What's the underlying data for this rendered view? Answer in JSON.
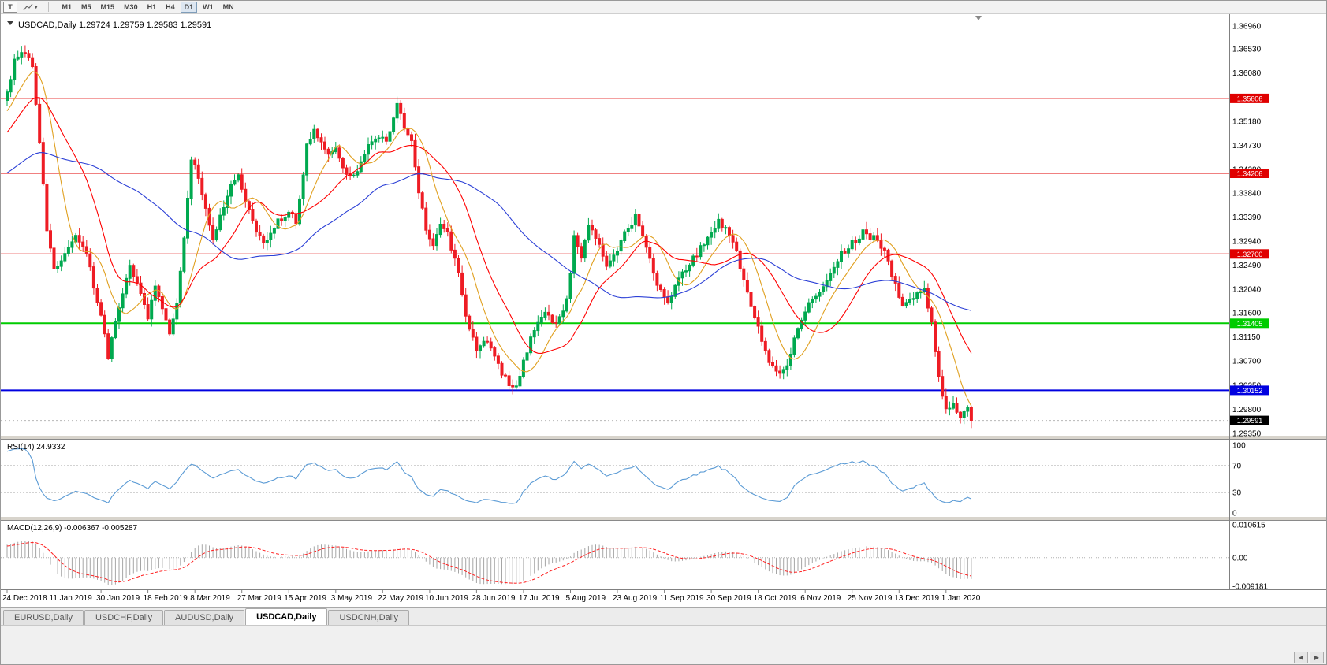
{
  "toolbar": {
    "text_tool": "T",
    "caret": "▾",
    "timeframes": [
      "M1",
      "M5",
      "M15",
      "M30",
      "H1",
      "H4",
      "D1",
      "W1",
      "MN"
    ],
    "active_timeframe": "D1"
  },
  "chart": {
    "title": "USDCAD,Daily",
    "ohlc": {
      "open": "1.29724",
      "high": "1.29759",
      "low": "1.29583",
      "close": "1.29591"
    },
    "current_price": {
      "value": "1.29591",
      "bg": "#000000"
    },
    "price_scale": [
      "1.36960",
      "1.36530",
      "1.36080",
      "1.35630",
      "1.35180",
      "1.34730",
      "1.34280",
      "1.33840",
      "1.33390",
      "1.32940",
      "1.32490",
      "1.32040",
      "1.31600",
      "1.31150",
      "1.30700",
      "1.30250",
      "1.29800",
      "1.29350"
    ],
    "hlines": [
      {
        "price": 1.35606,
        "color": "#e00000",
        "width": 1,
        "label": "1.35606"
      },
      {
        "price": 1.34206,
        "color": "#e00000",
        "width": 1,
        "label": "1.34206"
      },
      {
        "price": 1.327,
        "color": "#e00000",
        "width": 1,
        "label": "1.32700"
      },
      {
        "price": 1.31405,
        "color": "#00cc00",
        "width": 2,
        "label": "1.31405"
      },
      {
        "price": 1.30152,
        "color": "#0000e0",
        "width": 2,
        "label": "1.30152"
      }
    ],
    "date_labels": [
      "24 Dec 2018",
      "11 Jan 2019",
      "30 Jan 2019",
      "18 Feb 2019",
      "8 Mar 2019",
      "27 Mar 2019",
      "15 Apr 2019",
      "3 May 2019",
      "22 May 2019",
      "10 Jun 2019",
      "28 Jun 2019",
      "17 Jul 2019",
      "5 Aug 2019",
      "23 Aug 2019",
      "11 Sep 2019",
      "30 Sep 2019",
      "18 Oct 2019",
      "6 Nov 2019",
      "25 Nov 2019",
      "13 Dec 2019",
      "1 Jan 2020"
    ]
  },
  "rsi": {
    "label": "RSI(14)",
    "value": "24.9332",
    "scale": [
      "100",
      "70",
      "30",
      "0"
    ],
    "levels": [
      70,
      30
    ],
    "color": "#5b9bd5"
  },
  "macd": {
    "label": "MACD(12,26,9)",
    "values": "-0.006367 -0.005287",
    "scale": [
      "0.010615",
      "0.00",
      "-0.009181"
    ],
    "histogram_color": "#a6a6a6",
    "signal_color": "#ff2020"
  },
  "tabs": {
    "items": [
      "EURUSD,Daily",
      "USDCHF,Daily",
      "AUDUSD,Daily",
      "USDCAD,Daily",
      "USDCNH,Daily"
    ],
    "active": "USDCAD,Daily"
  },
  "bottom": {
    "scroll_left": "◀",
    "scroll_right": "▶"
  },
  "chart_data": {
    "type": "candlestick",
    "symbol": "USDCAD",
    "timeframe": "Daily",
    "candle_count": 268,
    "price_range_visible": [
      1.2925,
      1.3718
    ],
    "colors": {
      "up": "#00a94f",
      "down": "#ee1c24"
    },
    "moving_averages": [
      {
        "period": 10,
        "color": "#e0a020"
      },
      {
        "period": 21,
        "color": "#ff0000"
      },
      {
        "period": 55,
        "color": "#2b3fd6"
      }
    ],
    "indicators": [
      {
        "name": "RSI",
        "period": 14,
        "last_value": 24.9332
      },
      {
        "name": "MACD",
        "fast": 12,
        "slow": 26,
        "signal": 9,
        "last_main": -0.006367,
        "last_signal": -0.005287
      }
    ],
    "pre_history": [
      [
        -60,
        1.333
      ],
      [
        -45,
        1.3395
      ],
      [
        -30,
        1.3345
      ],
      [
        -15,
        1.346
      ],
      [
        -6,
        1.353
      ]
    ],
    "waypoints": [
      [
        0,
        1.357
      ],
      [
        2,
        1.363
      ],
      [
        5,
        1.365
      ],
      [
        7,
        1.3615
      ],
      [
        9,
        1.348
      ],
      [
        11,
        1.331
      ],
      [
        13,
        1.324
      ],
      [
        16,
        1.327
      ],
      [
        19,
        1.3305
      ],
      [
        22,
        1.327
      ],
      [
        24,
        1.321
      ],
      [
        26,
        1.315
      ],
      [
        28,
        1.308
      ],
      [
        31,
        1.317
      ],
      [
        34,
        1.3245
      ],
      [
        37,
        1.32
      ],
      [
        39,
        1.3155
      ],
      [
        41,
        1.3215
      ],
      [
        43,
        1.317
      ],
      [
        45,
        1.312
      ],
      [
        47,
        1.318
      ],
      [
        49,
        1.33
      ],
      [
        51,
        1.3445
      ],
      [
        53,
        1.3415
      ],
      [
        55,
        1.335
      ],
      [
        57,
        1.3295
      ],
      [
        59,
        1.334
      ],
      [
        62,
        1.3395
      ],
      [
        64,
        1.342
      ],
      [
        66,
        1.337
      ],
      [
        69,
        1.3305
      ],
      [
        72,
        1.329
      ],
      [
        75,
        1.333
      ],
      [
        78,
        1.335
      ],
      [
        80,
        1.333
      ],
      [
        83,
        1.347
      ],
      [
        85,
        1.35
      ],
      [
        88,
        1.346
      ],
      [
        91,
        1.3465
      ],
      [
        93,
        1.343
      ],
      [
        96,
        1.3415
      ],
      [
        99,
        1.346
      ],
      [
        102,
        1.349
      ],
      [
        105,
        1.348
      ],
      [
        107,
        1.352
      ],
      [
        108,
        1.355
      ],
      [
        110,
        1.351
      ],
      [
        112,
        1.348
      ],
      [
        114,
        1.339
      ],
      [
        116,
        1.331
      ],
      [
        118,
        1.329
      ],
      [
        120,
        1.332
      ],
      [
        122,
        1.331
      ],
      [
        125,
        1.323
      ],
      [
        127,
        1.315
      ],
      [
        130,
        1.309
      ],
      [
        133,
        1.311
      ],
      [
        136,
        1.306
      ],
      [
        139,
        1.303
      ],
      [
        141,
        1.302
      ],
      [
        143,
        1.307
      ],
      [
        146,
        1.313
      ],
      [
        149,
        1.316
      ],
      [
        152,
        1.314
      ],
      [
        155,
        1.318
      ],
      [
        157,
        1.33
      ],
      [
        159,
        1.326
      ],
      [
        161,
        1.332
      ],
      [
        164,
        1.329
      ],
      [
        166,
        1.325
      ],
      [
        169,
        1.328
      ],
      [
        172,
        1.332
      ],
      [
        174,
        1.334
      ],
      [
        177,
        1.328
      ],
      [
        180,
        1.321
      ],
      [
        183,
        1.318
      ],
      [
        186,
        1.323
      ],
      [
        189,
        1.325
      ],
      [
        192,
        1.328
      ],
      [
        195,
        1.3305
      ],
      [
        197,
        1.333
      ],
      [
        199,
        1.332
      ],
      [
        202,
        1.327
      ],
      [
        205,
        1.32
      ],
      [
        208,
        1.313
      ],
      [
        211,
        1.307
      ],
      [
        214,
        1.3045
      ],
      [
        216,
        1.306
      ],
      [
        219,
        1.313
      ],
      [
        222,
        1.3175
      ],
      [
        225,
        1.32
      ],
      [
        228,
        1.323
      ],
      [
        231,
        1.327
      ],
      [
        234,
        1.329
      ],
      [
        237,
        1.331
      ],
      [
        240,
        1.33
      ],
      [
        243,
        1.328
      ],
      [
        246,
        1.321
      ],
      [
        248,
        1.317
      ],
      [
        251,
        1.319
      ],
      [
        254,
        1.32
      ],
      [
        256,
        1.314
      ],
      [
        258,
        1.304
      ],
      [
        260,
        1.2975
      ],
      [
        262,
        1.299
      ],
      [
        264,
        1.296
      ],
      [
        266,
        1.2985
      ],
      [
        267,
        1.29591
      ]
    ]
  }
}
